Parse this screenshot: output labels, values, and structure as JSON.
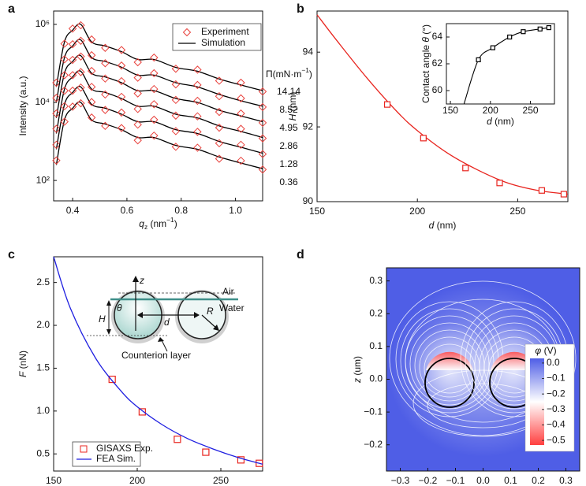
{
  "chart_data": [
    {
      "panel_label": "a",
      "type": "line",
      "log_y": true,
      "y_label": "Intensity (a.u.)",
      "x_label": [
        "q",
        "z",
        " (nm",
        "−1",
        ")"
      ],
      "xlim": [
        0.33,
        1.1
      ],
      "xticks": [
        0.4,
        0.6,
        0.8,
        {
          "value": 1,
          "label": "1.0"
        }
      ],
      "ylim": [
        30,
        2200000
      ],
      "yticks": [
        {
          "value": 100,
          "label": "10²"
        },
        {
          "value": 10000,
          "label": "10⁴"
        },
        {
          "value": 1000000,
          "label": "10⁶"
        }
      ],
      "legend": {
        "position": "upper right",
        "experiment": {
          "name": "Experiment",
          "color": "#e8413c"
        },
        "simulation": {
          "name": "Simulation",
          "color": "#000000"
        }
      },
      "curve_title": [
        "Π",
        "(mN·m",
        "−1",
        ")"
      ],
      "x": [
        0.34,
        0.37,
        0.4,
        0.43,
        0.47,
        0.52,
        0.58,
        0.64,
        0.7,
        0.78,
        0.86,
        0.94,
        1.02,
        1.1
      ],
      "curves": [
        {
          "label": "14.14",
          "simulation": [
            25000.0,
            355000.0,
            710000.0,
            1000000.0,
            355000.0,
            280000.0,
            200000.0,
            126000.0,
            126000.0,
            79000.0,
            63000.0,
            40000.0,
            28000.0,
            20000.0
          ],
          "experiment": [
            32000.0,
            320000.0,
            780000.0,
            950000.0,
            410000.0,
            250000.0,
            220000.0,
            107000.0,
            141000.0,
            73000.0,
            69000.0,
            36000.0,
            32000.0,
            19000.0
          ]
        },
        {
          "label": "8.52",
          "simulation": [
            10000.0,
            141000.0,
            280000.0,
            400000.0,
            141000.0,
            112000.0,
            80000.0,
            50000.0,
            50000.0,
            32000.0,
            25000.0,
            16000.0,
            11000.0,
            8000.0
          ],
          "experiment": [
            13000.0,
            127000.0,
            310000.0,
            380000.0,
            162000.0,
            101000.0,
            88000.0,
            43000.0,
            56000.0,
            29000.0,
            28000.0,
            14400.0,
            12700.0,
            7600.0
          ]
        },
        {
          "label": "4.95",
          "simulation": [
            4000.0,
            56000.0,
            112000.0,
            158000.0,
            56000.0,
            45000.0,
            32000.0,
            20000.0,
            20000.0,
            12600.0,
            10000.0,
            6300.0,
            4500.0,
            3200.0
          ],
          "experiment": [
            5200.0,
            50000.0,
            123000.0,
            150000.0,
            64000.0,
            41000.0,
            35000.0,
            17000.0,
            22000.0,
            11600.0,
            11000.0,
            5700.0,
            5200.0,
            3000.0
          ]
        },
        {
          "label": "2.86",
          "simulation": [
            1600.0,
            22000.0,
            45000.0,
            63000.0,
            22000.0,
            18000.0,
            12600.0,
            8000.0,
            8000.0,
            5000.0,
            4000.0,
            2500.0,
            1800.0,
            1260.0
          ],
          "experiment": [
            2100.0,
            20000.0,
            50000.0,
            60000.0,
            25000.0,
            16000.0,
            13900.0,
            6800.0,
            9000.0,
            4600.0,
            4400.0,
            2250.0,
            2100.0,
            1200.0
          ]
        },
        {
          "label": "1.28",
          "simulation": [
            630,
            8900.0,
            18000.0,
            25000.0,
            8900.0,
            7100.0,
            5000.0,
            3200.0,
            3200.0,
            2000.0,
            1600.0,
            1000.0,
            710,
            500
          ],
          "experiment": [
            820,
            8000.0,
            20000.0,
            24000.0,
            10200.0,
            6400.0,
            5500.0,
            2700.0,
            3600.0,
            1840.0,
            1760.0,
            900,
            820,
            475
          ]
        },
        {
          "label": "0.36",
          "simulation": [
            250,
            3550.0,
            7100.0,
            10000.0,
            3550.0,
            2800.0,
            2000.0,
            1260.0,
            1260.0,
            790,
            630,
            400,
            280,
            200
          ],
          "experiment": [
            325,
            3200.0,
            7800.0,
            9500.0,
            4100.0,
            2500.0,
            2200.0,
            1070.0,
            1410.0,
            730,
            690,
            360,
            320,
            190
          ]
        }
      ]
    },
    {
      "panel_label": "b",
      "type": "scatter",
      "x_label": [
        "d",
        " (nm)"
      ],
      "y_label": [
        "H",
        " (nm)"
      ],
      "xlim": [
        150,
        275
      ],
      "xticks": [
        150,
        200,
        250
      ],
      "ylim": [
        90,
        95.1
      ],
      "yticks": [
        90,
        92,
        94
      ],
      "color": "#e8251f",
      "fit": {
        "x": [
          150,
          160,
          175,
          190,
          200,
          215,
          230,
          245,
          260,
          275
        ],
        "values": [
          95,
          94.3,
          93.3,
          92.4,
          91.9,
          91.3,
          90.85,
          90.5,
          90.3,
          90.2
        ]
      },
      "points": {
        "x": [
          185,
          203,
          224,
          241,
          262,
          273
        ],
        "values": [
          92.6,
          91.7,
          90.9,
          90.5,
          90.3,
          90.2
        ]
      },
      "inset": {
        "x_label": [
          "d",
          " (nm)"
        ],
        "y_label": [
          "Contact angle ",
          "θ",
          " (°)"
        ],
        "xlim": [
          145,
          280
        ],
        "xticks": [
          150,
          200,
          250
        ],
        "ylim": [
          59,
          65
        ],
        "yticks": [
          60,
          62,
          64
        ],
        "color": "#000000",
        "fit": {
          "x": [
            167,
            185,
            203,
            224,
            241,
            262,
            273
          ],
          "values": [
            59,
            62.3,
            63.2,
            64,
            64.4,
            64.6,
            64.7
          ]
        },
        "points": {
          "x": [
            185,
            203,
            224,
            241,
            262,
            273
          ],
          "values": [
            62.3,
            63.2,
            64,
            64.4,
            64.6,
            64.7
          ]
        }
      }
    },
    {
      "panel_label": "c",
      "type": "line",
      "x_label": [
        "d",
        " (nm)"
      ],
      "y_label": [
        "F",
        " (nN)"
      ],
      "xlim": [
        150,
        275
      ],
      "xticks": [
        150,
        200,
        250
      ],
      "ylim": [
        0.3,
        2.8
      ],
      "yticks": [
        0.5,
        {
          "value": 1,
          "label": "1.0"
        },
        1.5,
        {
          "value": 2,
          "label": "2.0"
        },
        2.5
      ],
      "legend": "lower left",
      "series": [
        {
          "name": "GISAXS Exp.",
          "color": "#e8251f",
          "style": "markers",
          "x": [
            185,
            203,
            224,
            241,
            262,
            273
          ],
          "values": [
            1.37,
            0.99,
            0.67,
            0.52,
            0.43,
            0.39
          ]
        },
        {
          "name": "FEA Sim.",
          "color": "#1f1fe0",
          "style": "line",
          "x": [
            150,
            160,
            175,
            190,
            200,
            215,
            230,
            245,
            260,
            275
          ],
          "values": [
            2.8,
            2.2,
            1.62,
            1.24,
            1.05,
            0.84,
            0.68,
            0.56,
            0.46,
            0.38
          ]
        }
      ],
      "annotations": {
        "z": "z",
        "air": "Air",
        "water": "Water",
        "theta": "θ",
        "height": "H",
        "distance": "d",
        "radius": "R",
        "counterion": "Counterion layer"
      }
    },
    {
      "panel_label": "d",
      "type": "contour",
      "x_label": [
        "x",
        " (um)"
      ],
      "y_label": [
        "z",
        " (um)"
      ],
      "xlim": [
        -0.35,
        0.35
      ],
      "xticks": [
        {
          "value": -0.3,
          "label": "−0.3"
        },
        {
          "value": -0.2,
          "label": "−0.2"
        },
        {
          "value": -0.1,
          "label": "−0.1"
        },
        {
          "value": 0,
          "label": "0.0"
        },
        0.1,
        0.2,
        0.3
      ],
      "ylim": [
        -0.28,
        0.34
      ],
      "yticks": [
        {
          "value": -0.2,
          "label": "−0.2"
        },
        {
          "value": -0.1,
          "label": "−0.1"
        },
        {
          "value": 0,
          "label": "0.0"
        },
        0.1,
        0.2,
        0.3
      ],
      "colorbar": {
        "title": [
          "φ",
          " (V)"
        ],
        "range": [
          -0.53,
          0.03
        ],
        "colors": [
          "#4f5ee6",
          "#ffffff",
          "#ff4040"
        ],
        "ticks": [
          {
            "value": 0,
            "label": "0.0"
          },
          {
            "value": -0.1,
            "label": "−0.1"
          },
          {
            "value": -0.2,
            "label": "−0.2"
          },
          {
            "value": -0.3,
            "label": "−0.3"
          },
          {
            "value": -0.4,
            "label": "−0.4"
          },
          {
            "value": -0.5,
            "label": "−0.5"
          }
        ]
      }
    }
  ]
}
